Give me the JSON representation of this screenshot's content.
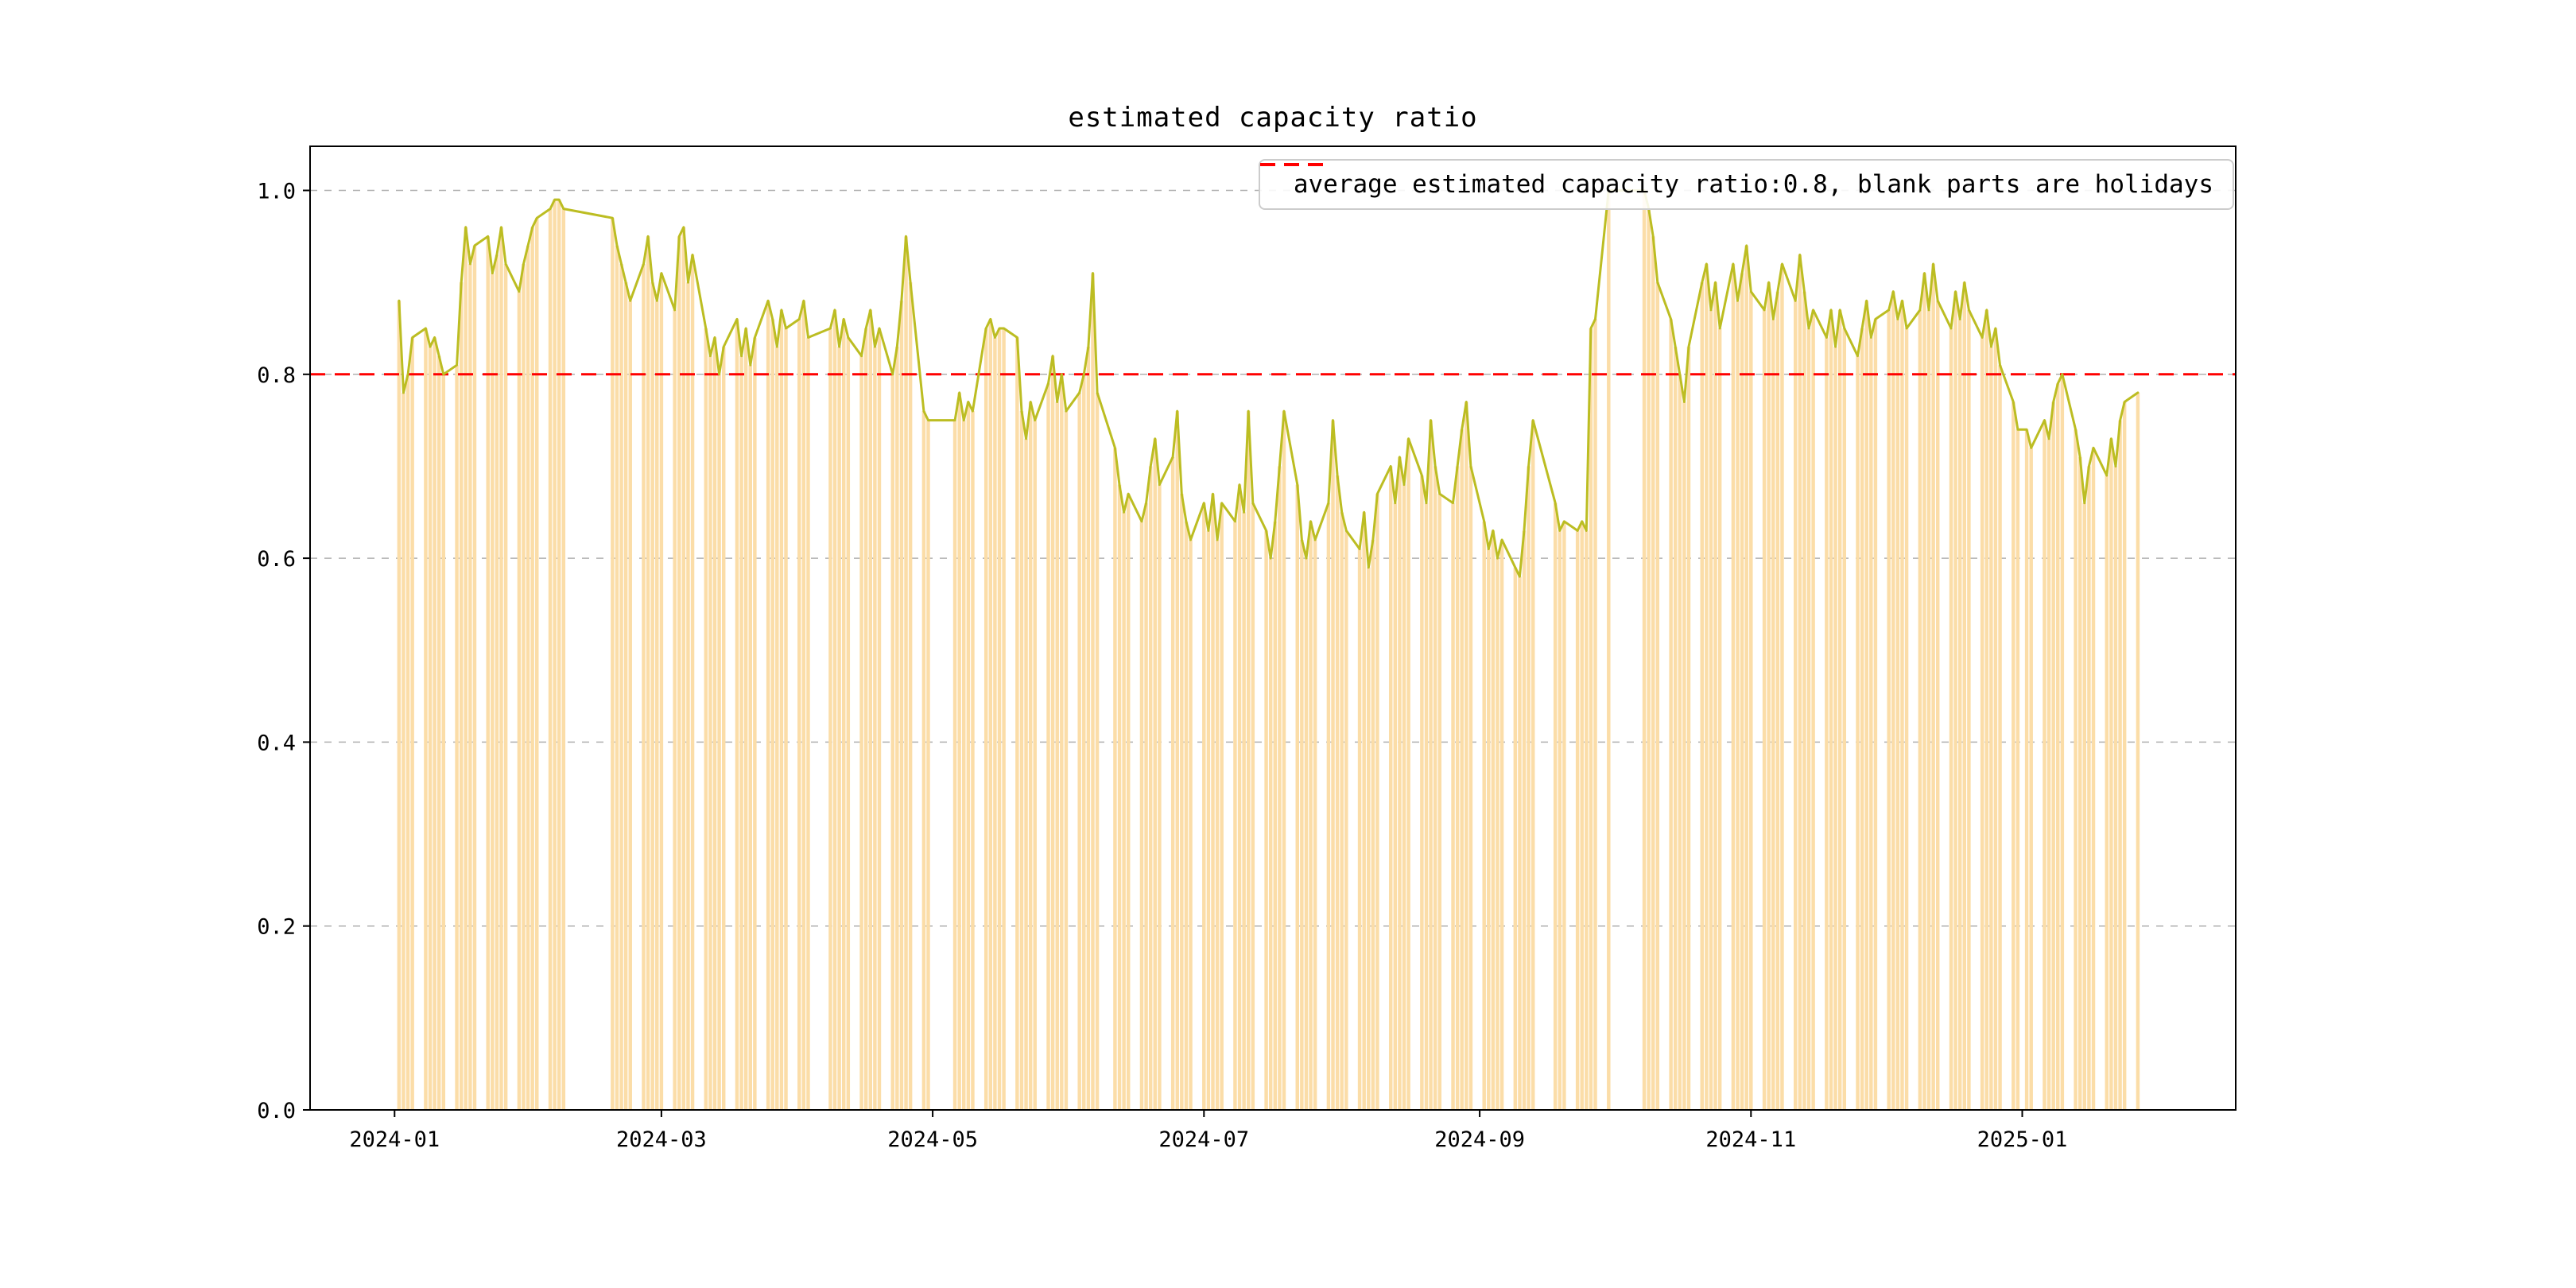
{
  "title": "estimated capacity ratio",
  "legend": {
    "label": "average estimated capacity ratio:0.8, blank parts are holidays"
  },
  "colors": {
    "bar": "#fbdda8",
    "line": "#bcbd22",
    "avg_line": "#ff0000",
    "grid": "#b0b0b0",
    "axis": "#000000"
  },
  "axes": {
    "y_ticks": [
      0.0,
      0.2,
      0.4,
      0.6,
      0.8,
      1.0
    ],
    "y_tick_labels": [
      "0.0",
      "0.2",
      "0.4",
      "0.6",
      "0.8",
      "1.0"
    ],
    "x_tick_labels": [
      "2024-01",
      "2024-03",
      "2024-05",
      "2024-07",
      "2024-09",
      "2024-11",
      "2025-01"
    ],
    "x_tick_dates": [
      "2024-01-01",
      "2024-03-01",
      "2024-05-01",
      "2024-07-01",
      "2024-09-01",
      "2024-11-01",
      "2025-01-01"
    ],
    "x_range": [
      "2023-12-13",
      "2025-02-18"
    ],
    "y_range": [
      0.0,
      1.048
    ],
    "grid": "dashed"
  },
  "chart_data": {
    "type": "bar+line",
    "title": "estimated capacity ratio",
    "average": 0.8,
    "note": "blank parts are holidays",
    "ylim": [
      0.0,
      1.048
    ],
    "points": [
      [
        "2024-01-02",
        0.88
      ],
      [
        "2024-01-03",
        0.78
      ],
      [
        "2024-01-04",
        0.8
      ],
      [
        "2024-01-05",
        0.84
      ],
      [
        "2024-01-08",
        0.85
      ],
      [
        "2024-01-09",
        0.83
      ],
      [
        "2024-01-10",
        0.84
      ],
      [
        "2024-01-11",
        0.82
      ],
      [
        "2024-01-12",
        0.8
      ],
      [
        "2024-01-15",
        0.81
      ],
      [
        "2024-01-16",
        0.9
      ],
      [
        "2024-01-17",
        0.96
      ],
      [
        "2024-01-18",
        0.92
      ],
      [
        "2024-01-19",
        0.94
      ],
      [
        "2024-01-22",
        0.95
      ],
      [
        "2024-01-23",
        0.91
      ],
      [
        "2024-01-24",
        0.93
      ],
      [
        "2024-01-25",
        0.96
      ],
      [
        "2024-01-26",
        0.92
      ],
      [
        "2024-01-29",
        0.89
      ],
      [
        "2024-01-30",
        0.92
      ],
      [
        "2024-01-31",
        0.94
      ],
      [
        "2024-02-01",
        0.96
      ],
      [
        "2024-02-02",
        0.97
      ],
      [
        "2024-02-05",
        0.98
      ],
      [
        "2024-02-06",
        0.99
      ],
      [
        "2024-02-07",
        0.99
      ],
      [
        "2024-02-08",
        0.98
      ],
      [
        "2024-02-19",
        0.97
      ],
      [
        "2024-02-20",
        0.94
      ],
      [
        "2024-02-21",
        0.92
      ],
      [
        "2024-02-22",
        0.9
      ],
      [
        "2024-02-23",
        0.88
      ],
      [
        "2024-02-26",
        0.92
      ],
      [
        "2024-02-27",
        0.95
      ],
      [
        "2024-02-28",
        0.9
      ],
      [
        "2024-02-29",
        0.88
      ],
      [
        "2024-03-01",
        0.91
      ],
      [
        "2024-03-04",
        0.87
      ],
      [
        "2024-03-05",
        0.95
      ],
      [
        "2024-03-06",
        0.96
      ],
      [
        "2024-03-07",
        0.9
      ],
      [
        "2024-03-08",
        0.93
      ],
      [
        "2024-03-11",
        0.85
      ],
      [
        "2024-03-12",
        0.82
      ],
      [
        "2024-03-13",
        0.84
      ],
      [
        "2024-03-14",
        0.8
      ],
      [
        "2024-03-15",
        0.83
      ],
      [
        "2024-03-18",
        0.86
      ],
      [
        "2024-03-19",
        0.82
      ],
      [
        "2024-03-20",
        0.85
      ],
      [
        "2024-03-21",
        0.81
      ],
      [
        "2024-03-22",
        0.84
      ],
      [
        "2024-03-25",
        0.88
      ],
      [
        "2024-03-26",
        0.86
      ],
      [
        "2024-03-27",
        0.83
      ],
      [
        "2024-03-28",
        0.87
      ],
      [
        "2024-03-29",
        0.85
      ],
      [
        "2024-04-01",
        0.86
      ],
      [
        "2024-04-02",
        0.88
      ],
      [
        "2024-04-03",
        0.84
      ],
      [
        "2024-04-08",
        0.85
      ],
      [
        "2024-04-09",
        0.87
      ],
      [
        "2024-04-10",
        0.83
      ],
      [
        "2024-04-11",
        0.86
      ],
      [
        "2024-04-12",
        0.84
      ],
      [
        "2024-04-15",
        0.82
      ],
      [
        "2024-04-16",
        0.85
      ],
      [
        "2024-04-17",
        0.87
      ],
      [
        "2024-04-18",
        0.83
      ],
      [
        "2024-04-19",
        0.85
      ],
      [
        "2024-04-22",
        0.8
      ],
      [
        "2024-04-23",
        0.83
      ],
      [
        "2024-04-24",
        0.88
      ],
      [
        "2024-04-25",
        0.95
      ],
      [
        "2024-04-26",
        0.9
      ],
      [
        "2024-04-29",
        0.76
      ],
      [
        "2024-04-30",
        0.75
      ],
      [
        "2024-05-06",
        0.75
      ],
      [
        "2024-05-07",
        0.78
      ],
      [
        "2024-05-08",
        0.75
      ],
      [
        "2024-05-09",
        0.77
      ],
      [
        "2024-05-10",
        0.76
      ],
      [
        "2024-05-13",
        0.85
      ],
      [
        "2024-05-14",
        0.86
      ],
      [
        "2024-05-15",
        0.84
      ],
      [
        "2024-05-16",
        0.85
      ],
      [
        "2024-05-17",
        0.85
      ],
      [
        "2024-05-20",
        0.84
      ],
      [
        "2024-05-21",
        0.76
      ],
      [
        "2024-05-22",
        0.73
      ],
      [
        "2024-05-23",
        0.77
      ],
      [
        "2024-05-24",
        0.75
      ],
      [
        "2024-05-27",
        0.79
      ],
      [
        "2024-05-28",
        0.82
      ],
      [
        "2024-05-29",
        0.77
      ],
      [
        "2024-05-30",
        0.8
      ],
      [
        "2024-05-31",
        0.76
      ],
      [
        "2024-06-03",
        0.78
      ],
      [
        "2024-06-04",
        0.8
      ],
      [
        "2024-06-05",
        0.83
      ],
      [
        "2024-06-06",
        0.91
      ],
      [
        "2024-06-07",
        0.78
      ],
      [
        "2024-06-11",
        0.72
      ],
      [
        "2024-06-12",
        0.68
      ],
      [
        "2024-06-13",
        0.65
      ],
      [
        "2024-06-14",
        0.67
      ],
      [
        "2024-06-17",
        0.64
      ],
      [
        "2024-06-18",
        0.66
      ],
      [
        "2024-06-19",
        0.7
      ],
      [
        "2024-06-20",
        0.73
      ],
      [
        "2024-06-21",
        0.68
      ],
      [
        "2024-06-24",
        0.71
      ],
      [
        "2024-06-25",
        0.76
      ],
      [
        "2024-06-26",
        0.67
      ],
      [
        "2024-06-27",
        0.64
      ],
      [
        "2024-06-28",
        0.62
      ],
      [
        "2024-07-01",
        0.66
      ],
      [
        "2024-07-02",
        0.63
      ],
      [
        "2024-07-03",
        0.67
      ],
      [
        "2024-07-04",
        0.62
      ],
      [
        "2024-07-05",
        0.66
      ],
      [
        "2024-07-08",
        0.64
      ],
      [
        "2024-07-09",
        0.68
      ],
      [
        "2024-07-10",
        0.65
      ],
      [
        "2024-07-11",
        0.76
      ],
      [
        "2024-07-12",
        0.66
      ],
      [
        "2024-07-15",
        0.63
      ],
      [
        "2024-07-16",
        0.6
      ],
      [
        "2024-07-17",
        0.64
      ],
      [
        "2024-07-18",
        0.7
      ],
      [
        "2024-07-19",
        0.76
      ],
      [
        "2024-07-22",
        0.68
      ],
      [
        "2024-07-23",
        0.62
      ],
      [
        "2024-07-24",
        0.6
      ],
      [
        "2024-07-25",
        0.64
      ],
      [
        "2024-07-26",
        0.62
      ],
      [
        "2024-07-29",
        0.66
      ],
      [
        "2024-07-30",
        0.75
      ],
      [
        "2024-07-31",
        0.69
      ],
      [
        "2024-08-01",
        0.65
      ],
      [
        "2024-08-02",
        0.63
      ],
      [
        "2024-08-05",
        0.61
      ],
      [
        "2024-08-06",
        0.65
      ],
      [
        "2024-08-07",
        0.59
      ],
      [
        "2024-08-08",
        0.62
      ],
      [
        "2024-08-09",
        0.67
      ],
      [
        "2024-08-12",
        0.7
      ],
      [
        "2024-08-13",
        0.66
      ],
      [
        "2024-08-14",
        0.71
      ],
      [
        "2024-08-15",
        0.68
      ],
      [
        "2024-08-16",
        0.73
      ],
      [
        "2024-08-19",
        0.69
      ],
      [
        "2024-08-20",
        0.66
      ],
      [
        "2024-08-21",
        0.75
      ],
      [
        "2024-08-22",
        0.7
      ],
      [
        "2024-08-23",
        0.67
      ],
      [
        "2024-08-26",
        0.66
      ],
      [
        "2024-08-27",
        0.7
      ],
      [
        "2024-08-28",
        0.74
      ],
      [
        "2024-08-29",
        0.77
      ],
      [
        "2024-08-30",
        0.7
      ],
      [
        "2024-09-02",
        0.64
      ],
      [
        "2024-09-03",
        0.61
      ],
      [
        "2024-09-04",
        0.63
      ],
      [
        "2024-09-05",
        0.6
      ],
      [
        "2024-09-06",
        0.62
      ],
      [
        "2024-09-09",
        0.59
      ],
      [
        "2024-09-10",
        0.58
      ],
      [
        "2024-09-11",
        0.63
      ],
      [
        "2024-09-12",
        0.7
      ],
      [
        "2024-09-13",
        0.75
      ],
      [
        "2024-09-18",
        0.66
      ],
      [
        "2024-09-19",
        0.63
      ],
      [
        "2024-09-20",
        0.64
      ],
      [
        "2024-09-23",
        0.63
      ],
      [
        "2024-09-24",
        0.64
      ],
      [
        "2024-09-25",
        0.63
      ],
      [
        "2024-09-26",
        0.85
      ],
      [
        "2024-09-27",
        0.86
      ],
      [
        "2024-09-30",
        1.0
      ],
      [
        "2024-10-08",
        1.0
      ],
      [
        "2024-10-09",
        0.98
      ],
      [
        "2024-10-10",
        0.95
      ],
      [
        "2024-10-11",
        0.9
      ],
      [
        "2024-10-14",
        0.86
      ],
      [
        "2024-10-15",
        0.83
      ],
      [
        "2024-10-16",
        0.8
      ],
      [
        "2024-10-17",
        0.77
      ],
      [
        "2024-10-18",
        0.83
      ],
      [
        "2024-10-21",
        0.9
      ],
      [
        "2024-10-22",
        0.92
      ],
      [
        "2024-10-23",
        0.87
      ],
      [
        "2024-10-24",
        0.9
      ],
      [
        "2024-10-25",
        0.85
      ],
      [
        "2024-10-28",
        0.92
      ],
      [
        "2024-10-29",
        0.88
      ],
      [
        "2024-10-30",
        0.91
      ],
      [
        "2024-10-31",
        0.94
      ],
      [
        "2024-11-01",
        0.89
      ],
      [
        "2024-11-04",
        0.87
      ],
      [
        "2024-11-05",
        0.9
      ],
      [
        "2024-11-06",
        0.86
      ],
      [
        "2024-11-07",
        0.89
      ],
      [
        "2024-11-08",
        0.92
      ],
      [
        "2024-11-11",
        0.88
      ],
      [
        "2024-11-12",
        0.93
      ],
      [
        "2024-11-13",
        0.89
      ],
      [
        "2024-11-14",
        0.85
      ],
      [
        "2024-11-15",
        0.87
      ],
      [
        "2024-11-18",
        0.84
      ],
      [
        "2024-11-19",
        0.87
      ],
      [
        "2024-11-20",
        0.83
      ],
      [
        "2024-11-21",
        0.87
      ],
      [
        "2024-11-22",
        0.85
      ],
      [
        "2024-11-25",
        0.82
      ],
      [
        "2024-11-26",
        0.85
      ],
      [
        "2024-11-27",
        0.88
      ],
      [
        "2024-11-28",
        0.84
      ],
      [
        "2024-11-29",
        0.86
      ],
      [
        "2024-12-02",
        0.87
      ],
      [
        "2024-12-03",
        0.89
      ],
      [
        "2024-12-04",
        0.86
      ],
      [
        "2024-12-05",
        0.88
      ],
      [
        "2024-12-06",
        0.85
      ],
      [
        "2024-12-09",
        0.87
      ],
      [
        "2024-12-10",
        0.91
      ],
      [
        "2024-12-11",
        0.87
      ],
      [
        "2024-12-12",
        0.92
      ],
      [
        "2024-12-13",
        0.88
      ],
      [
        "2024-12-16",
        0.85
      ],
      [
        "2024-12-17",
        0.89
      ],
      [
        "2024-12-18",
        0.86
      ],
      [
        "2024-12-19",
        0.9
      ],
      [
        "2024-12-20",
        0.87
      ],
      [
        "2024-12-23",
        0.84
      ],
      [
        "2024-12-24",
        0.87
      ],
      [
        "2024-12-25",
        0.83
      ],
      [
        "2024-12-26",
        0.85
      ],
      [
        "2024-12-27",
        0.81
      ],
      [
        "2024-12-30",
        0.77
      ],
      [
        "2024-12-31",
        0.74
      ],
      [
        "2025-01-02",
        0.74
      ],
      [
        "2025-01-03",
        0.72
      ],
      [
        "2025-01-06",
        0.75
      ],
      [
        "2025-01-07",
        0.73
      ],
      [
        "2025-01-08",
        0.77
      ],
      [
        "2025-01-09",
        0.79
      ],
      [
        "2025-01-10",
        0.8
      ],
      [
        "2025-01-13",
        0.74
      ],
      [
        "2025-01-14",
        0.71
      ],
      [
        "2025-01-15",
        0.66
      ],
      [
        "2025-01-16",
        0.7
      ],
      [
        "2025-01-17",
        0.72
      ],
      [
        "2025-01-20",
        0.69
      ],
      [
        "2025-01-21",
        0.73
      ],
      [
        "2025-01-22",
        0.7
      ],
      [
        "2025-01-23",
        0.75
      ],
      [
        "2025-01-24",
        0.77
      ],
      [
        "2025-01-27",
        0.78
      ]
    ]
  }
}
